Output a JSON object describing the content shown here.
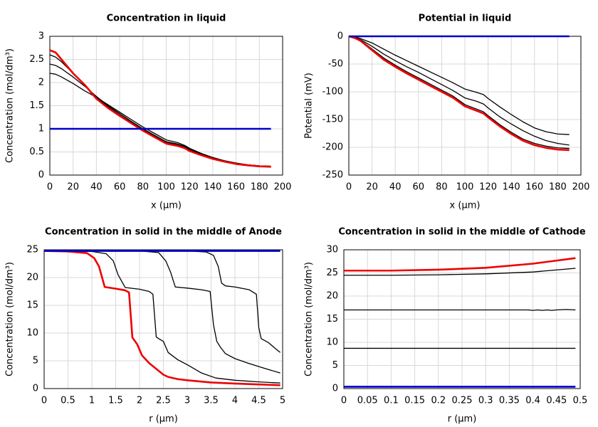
{
  "chart_data": [
    {
      "type": "line",
      "title": "Concentration in liquid",
      "xlabel": "x (µm)",
      "ylabel": "Concentration (mol/dm³)",
      "xlim": [
        0,
        200
      ],
      "xticks": [
        0,
        20,
        40,
        60,
        80,
        100,
        120,
        140,
        160,
        180,
        200
      ],
      "ylim": [
        0,
        3
      ],
      "yticks": [
        0,
        0.5,
        1,
        1.5,
        2,
        2.5,
        3
      ],
      "grid": true,
      "x": [
        0,
        5,
        10,
        20,
        30,
        40,
        50,
        60,
        70,
        80,
        90,
        100,
        110,
        116,
        120,
        130,
        140,
        150,
        160,
        170,
        180,
        190
      ],
      "series": [
        {
          "color": "#000000",
          "values": [
            2.2,
            2.18,
            2.12,
            1.98,
            1.82,
            1.68,
            1.52,
            1.36,
            1.2,
            1.04,
            0.9,
            0.76,
            0.7,
            0.64,
            0.58,
            0.47,
            0.38,
            0.31,
            0.26,
            0.22,
            0.2,
            0.19
          ]
        },
        {
          "color": "#000000",
          "values": [
            2.4,
            2.37,
            2.3,
            2.12,
            1.92,
            1.7,
            1.5,
            1.33,
            1.16,
            1.0,
            0.86,
            0.72,
            0.67,
            0.62,
            0.56,
            0.46,
            0.37,
            0.31,
            0.26,
            0.22,
            0.2,
            0.19
          ]
        },
        {
          "color": "#000000",
          "values": [
            2.6,
            2.55,
            2.45,
            2.2,
            1.95,
            1.68,
            1.48,
            1.3,
            1.14,
            0.98,
            0.84,
            0.7,
            0.65,
            0.6,
            0.54,
            0.44,
            0.36,
            0.3,
            0.25,
            0.22,
            0.2,
            0.19
          ]
        },
        {
          "color": "#ee0000",
          "values": [
            2.7,
            2.65,
            2.5,
            2.2,
            1.95,
            1.65,
            1.45,
            1.28,
            1.12,
            0.96,
            0.82,
            0.68,
            0.63,
            0.58,
            0.52,
            0.43,
            0.35,
            0.29,
            0.24,
            0.21,
            0.19,
            0.18
          ]
        },
        {
          "color": "#0000cc",
          "values": [
            1,
            1,
            1,
            1,
            1,
            1,
            1,
            1,
            1,
            1,
            1,
            1,
            1,
            1,
            1,
            1,
            1,
            1,
            1,
            1,
            1,
            1
          ]
        }
      ]
    },
    {
      "type": "line",
      "title": "Potential in liquid",
      "xlabel": "x (µm)",
      "ylabel": "Potential (mV)",
      "xlim": [
        0,
        200
      ],
      "xticks": [
        0,
        20,
        40,
        60,
        80,
        100,
        120,
        140,
        160,
        180,
        200
      ],
      "ylim": [
        -250,
        0
      ],
      "yticks": [
        -250,
        -200,
        -150,
        -100,
        -50,
        0
      ],
      "grid": true,
      "x": [
        0,
        5,
        10,
        20,
        30,
        40,
        50,
        60,
        70,
        80,
        90,
        100,
        110,
        116,
        120,
        130,
        140,
        150,
        160,
        170,
        180,
        190
      ],
      "series": [
        {
          "color": "#000000",
          "values": [
            0,
            -1,
            -4,
            -12,
            -23,
            -34,
            -44,
            -54,
            -64,
            -74,
            -84,
            -95,
            -101,
            -105,
            -112,
            -127,
            -141,
            -154,
            -165,
            -172,
            -176,
            -177
          ]
        },
        {
          "color": "#000000",
          "values": [
            0,
            -2,
            -6,
            -18,
            -32,
            -44,
            -55,
            -65,
            -76,
            -87,
            -98,
            -111,
            -117,
            -122,
            -129,
            -145,
            -158,
            -170,
            -180,
            -188,
            -193,
            -196
          ]
        },
        {
          "color": "#000000",
          "values": [
            0,
            -2,
            -7,
            -23,
            -39,
            -52,
            -64,
            -75,
            -86,
            -97,
            -108,
            -123,
            -131,
            -136,
            -143,
            -159,
            -173,
            -185,
            -193,
            -198,
            -201,
            -202
          ]
        },
        {
          "color": "#ee0000",
          "values": [
            0,
            -3,
            -8,
            -25,
            -42,
            -55,
            -67,
            -78,
            -89,
            -100,
            -111,
            -126,
            -134,
            -139,
            -146,
            -162,
            -176,
            -188,
            -196,
            -201,
            -204,
            -205
          ]
        },
        {
          "color": "#0000cc",
          "values": [
            0,
            0,
            0,
            0,
            0,
            0,
            0,
            0,
            0,
            0,
            0,
            0,
            0,
            0,
            0,
            0,
            0,
            0,
            0,
            0,
            0,
            0
          ]
        }
      ]
    },
    {
      "type": "line",
      "title": "Concentration in solid in the middle of Anode",
      "xlabel": "r (µm)",
      "ylabel": "Concentration (mol/dm³)",
      "xlim": [
        0,
        5
      ],
      "xticks": [
        0,
        0.5,
        1,
        1.5,
        2,
        2.5,
        3,
        3.5,
        4,
        4.5,
        5
      ],
      "ylim": [
        0,
        25
      ],
      "yticks": [
        0,
        5,
        10,
        15,
        20,
        25
      ],
      "grid": true,
      "series": [
        {
          "color": "#000000",
          "x": [
            0,
            1,
            1.3,
            1.45,
            1.55,
            1.7,
            2.0,
            2.2,
            2.28,
            2.35,
            2.4,
            2.5,
            2.6,
            2.8,
            3.0,
            3.3,
            3.6,
            4.0,
            4.5,
            4.95
          ],
          "values": [
            24.8,
            24.7,
            24.3,
            23,
            20.5,
            18.2,
            17.9,
            17.5,
            17,
            9.3,
            9,
            8.5,
            6.5,
            5.2,
            4.3,
            2.8,
            1.9,
            1.5,
            1.2,
            1.0
          ]
        },
        {
          "color": "#000000",
          "x": [
            0,
            2,
            2.4,
            2.55,
            2.65,
            2.75,
            3.0,
            3.3,
            3.48,
            3.55,
            3.62,
            3.7,
            3.8,
            4.0,
            4.3,
            4.6,
            4.95
          ],
          "values": [
            24.8,
            24.8,
            24.5,
            23,
            21,
            18.3,
            18.1,
            17.8,
            17.5,
            11.5,
            8.5,
            7.4,
            6.3,
            5.4,
            4.5,
            3.7,
            2.8
          ]
        },
        {
          "color": "#000000",
          "x": [
            0,
            3,
            3.4,
            3.55,
            3.65,
            3.72,
            3.8,
            4.0,
            4.3,
            4.45,
            4.5,
            4.55,
            4.7,
            4.85,
            4.95
          ],
          "values": [
            24.8,
            24.8,
            24.6,
            24,
            22,
            19,
            18.5,
            18.3,
            17.8,
            17,
            11,
            9,
            8.3,
            7.2,
            6.5
          ]
        },
        {
          "color": "#ee0000",
          "x": [
            0,
            0.5,
            0.9,
            1.05,
            1.15,
            1.27,
            1.5,
            1.7,
            1.78,
            1.85,
            1.95,
            2.05,
            2.2,
            2.4,
            2.5,
            2.6,
            2.8,
            3.0,
            3.5,
            4,
            4.5,
            4.95
          ],
          "values": [
            24.8,
            24.7,
            24.4,
            23.5,
            22,
            18.3,
            18,
            17.7,
            17.3,
            9.2,
            8,
            6,
            4.6,
            3.2,
            2.5,
            2.1,
            1.7,
            1.5,
            1.1,
            0.9,
            0.75,
            0.6
          ]
        },
        {
          "color": "#0000cc",
          "x": [
            0,
            4.95
          ],
          "values": [
            24.8,
            24.8
          ]
        }
      ]
    },
    {
      "type": "line",
      "title": "Concentration in solid in the middle of Cathode",
      "xlabel": "r (µm)",
      "ylabel": "Concentration (mol/dm³)",
      "xlim": [
        0,
        0.5
      ],
      "xticks": [
        0,
        0.05,
        0.1,
        0.15,
        0.2,
        0.25,
        0.3,
        0.35,
        0.4,
        0.45,
        0.5
      ],
      "ylim": [
        0,
        30
      ],
      "yticks": [
        0,
        5,
        10,
        15,
        20,
        25,
        30
      ],
      "grid": true,
      "series": [
        {
          "color": "#000000",
          "x": [
            0,
            0.49
          ],
          "values": [
            8.7,
            8.7
          ]
        },
        {
          "color": "#000000",
          "x": [
            0,
            0.1,
            0.2,
            0.3,
            0.39,
            0.4,
            0.41,
            0.42,
            0.43,
            0.44,
            0.45,
            0.47,
            0.49
          ],
          "values": [
            17,
            17,
            17,
            17,
            17,
            16.9,
            17,
            16.9,
            17,
            16.9,
            17,
            17.1,
            17
          ]
        },
        {
          "color": "#000000",
          "x": [
            0,
            0.1,
            0.2,
            0.3,
            0.4,
            0.49
          ],
          "values": [
            24.5,
            24.5,
            24.6,
            24.8,
            25.2,
            26
          ]
        },
        {
          "color": "#ee0000",
          "x": [
            0,
            0.1,
            0.2,
            0.3,
            0.4,
            0.49
          ],
          "values": [
            25.5,
            25.5,
            25.7,
            26.1,
            27,
            28.2
          ]
        },
        {
          "color": "#0000cc",
          "x": [
            0,
            0.49
          ],
          "values": [
            0.4,
            0.4
          ]
        }
      ]
    }
  ]
}
